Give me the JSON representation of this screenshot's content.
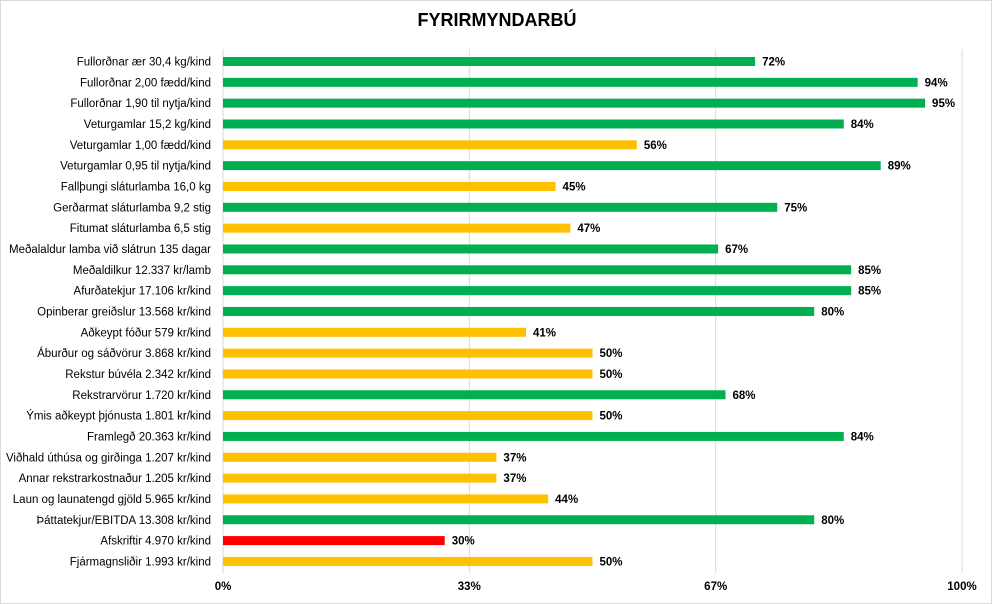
{
  "chart_data": {
    "type": "bar",
    "orientation": "horizontal",
    "title": "FYRIRMYNDARBÚ",
    "xlabel": "",
    "ylabel": "",
    "xlim": [
      0,
      100
    ],
    "grid": "vertical",
    "ticks": [
      {
        "value": 0,
        "label": "0%"
      },
      {
        "value": 33.33,
        "label": "33%"
      },
      {
        "value": 66.67,
        "label": "67%"
      },
      {
        "value": 100,
        "label": "100%"
      }
    ],
    "colors": {
      "green": "#00b050",
      "yellow": "#ffc000",
      "red": "#ff0000",
      "grid": "#d9d9d9"
    },
    "bars": [
      {
        "category": "Fullorðnar ær 30,4 kg/kind",
        "value": 72,
        "label": "72%",
        "color": "green"
      },
      {
        "category": "Fullorðnar 2,00 fædd/kind",
        "value": 94,
        "label": "94%",
        "color": "green"
      },
      {
        "category": "Fullorðnar 1,90 til nytja/kind",
        "value": 95,
        "label": "95%",
        "color": "green"
      },
      {
        "category": "Veturgamlar 15,2 kg/kind",
        "value": 84,
        "label": "84%",
        "color": "green"
      },
      {
        "category": "Veturgamlar 1,00 fædd/kind",
        "value": 56,
        "label": "56%",
        "color": "yellow"
      },
      {
        "category": "Veturgamlar 0,95 til nytja/kind",
        "value": 89,
        "label": "89%",
        "color": "green"
      },
      {
        "category": "Fallþungi sláturlamba 16,0 kg",
        "value": 45,
        "label": "45%",
        "color": "yellow"
      },
      {
        "category": "Gerðarmat sláturlamba 9,2 stig",
        "value": 75,
        "label": "75%",
        "color": "green"
      },
      {
        "category": "Fitumat sláturlamba 6,5 stig",
        "value": 47,
        "label": "47%",
        "color": "yellow"
      },
      {
        "category": "Meðalaldur lamba við slátrun 135 dagar",
        "value": 67,
        "label": "67%",
        "color": "green"
      },
      {
        "category": "Meðaldilkur 12.337 kr/lamb",
        "value": 85,
        "label": "85%",
        "color": "green"
      },
      {
        "category": "Afurðatekjur 17.106 kr/kind",
        "value": 85,
        "label": "85%",
        "color": "green"
      },
      {
        "category": "Opinberar greiðslur 13.568 kr/kind",
        "value": 80,
        "label": "80%",
        "color": "green"
      },
      {
        "category": "Aðkeypt fóður 579 kr/kind",
        "value": 41,
        "label": "41%",
        "color": "yellow"
      },
      {
        "category": "Áburður og sáðvörur 3.868 kr/kind",
        "value": 50,
        "label": "50%",
        "color": "yellow"
      },
      {
        "category": "Rekstur búvéla 2.342 kr/kind",
        "value": 50,
        "label": "50%",
        "color": "yellow"
      },
      {
        "category": "Rekstrarvörur 1.720 kr/kind",
        "value": 68,
        "label": "68%",
        "color": "green"
      },
      {
        "category": "Ýmis aðkeypt þjónusta 1.801 kr/kind",
        "value": 50,
        "label": "50%",
        "color": "yellow"
      },
      {
        "category": "Framlegð 20.363 kr/kind",
        "value": 84,
        "label": "84%",
        "color": "green"
      },
      {
        "category": "Viðhald úthúsa og girðinga 1.207 kr/kind",
        "value": 37,
        "label": "37%",
        "color": "yellow"
      },
      {
        "category": "Annar rekstrarkostnaður 1.205 kr/kind",
        "value": 37,
        "label": "37%",
        "color": "yellow"
      },
      {
        "category": "Laun og launatengd gjöld 5.965 kr/kind",
        "value": 44,
        "label": "44%",
        "color": "yellow"
      },
      {
        "category": "Þáttatekjur/EBITDA 13.308 kr/kind",
        "value": 80,
        "label": "80%",
        "color": "green"
      },
      {
        "category": "Afskriftir 4.970 kr/kind",
        "value": 30,
        "label": "30%",
        "color": "red"
      },
      {
        "category": "Fjármagnsliðir 1.993 kr/kind",
        "value": 50,
        "label": "50%",
        "color": "yellow"
      }
    ]
  }
}
